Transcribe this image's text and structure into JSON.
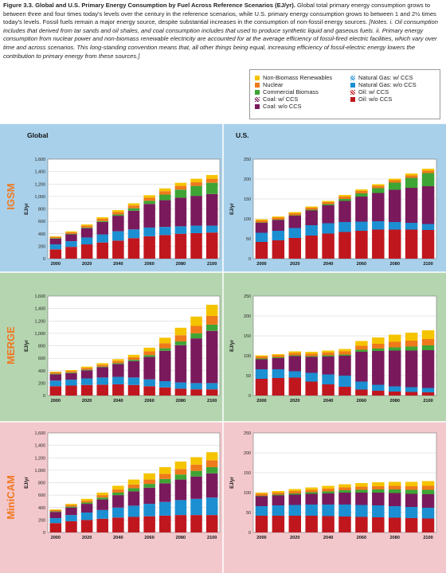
{
  "caption": {
    "title": "Figure 3.3. Global and U.S. Primary Energy Consumption by Fuel Across Reference Scenarios (EJ/yr).",
    "body": " Global total primary energy consumption grows to between three and four times today's levels over the century in the reference scenarios, while U.S. primary energy consumption grows to between 1 and 2½ times today's levels. Fossil fuels remain a major energy source, despite substantial increases in the consumption of non-fossil energy sources. ",
    "notes": "[Notes. i. Oil consumption includes that derived from tar sands and oil shales, and coal consumption includes that used to produce synthetic liquid and gaseous fuels. ii. Primary energy consumption from nuclear power and non-biomass renewable electricity are accounted for at the average efficiency of fossil-fired electric facilities, which vary over time and across scenarios. This long-standing convention means that, all other things being equal, increasing efficiency of fossil-electric energy lowers the contribution to primary energy from these sources.]"
  },
  "legend": [
    {
      "label": "Non-Biomass Renewables",
      "color": "#f5c400",
      "pattern": "solid"
    },
    {
      "label": "Nuclear",
      "color": "#ee7a1b",
      "pattern": "solid"
    },
    {
      "label": "Commercial Biomass",
      "color": "#3ea535",
      "pattern": "solid"
    },
    {
      "label": "Coal: w/ CCS",
      "color": "#7a1a5c",
      "pattern": "hatch"
    },
    {
      "label": "Coal: w/o CCS",
      "color": "#7a1a5c",
      "pattern": "solid"
    },
    {
      "label": "Natural Gas: w/ CCS",
      "color": "#1b8fd2",
      "pattern": "hatch"
    },
    {
      "label": "Natural Gas: w/o CCS",
      "color": "#1b8fd2",
      "pattern": "solid"
    },
    {
      "label": "Oil: w/ CCS",
      "color": "#c0171f",
      "pattern": "hatch"
    },
    {
      "label": "Oil: w/o CCS",
      "color": "#c0171f",
      "pattern": "solid"
    }
  ],
  "columns": [
    "Global",
    "U.S."
  ],
  "rows": [
    {
      "name": "IGSM",
      "bg": "#a8d0ea"
    },
    {
      "name": "MERGE",
      "bg": "#b5d5b0"
    },
    {
      "name": "MiniCAM",
      "bg": "#f3c8cc"
    }
  ],
  "chart_data": [
    {
      "type": "bar",
      "stacked": true,
      "model": "IGSM",
      "region": "Global",
      "ylabel": "EJ/yr",
      "ylim": [
        0,
        1600
      ],
      "yticks": [
        "0",
        "200",
        "400",
        "600",
        "800",
        "1,000",
        "1,200",
        "1,400",
        "1,600"
      ],
      "x": [
        2000,
        2010,
        2020,
        2030,
        2040,
        2050,
        2060,
        2070,
        2080,
        2090,
        2100
      ],
      "xticks": [
        "2000",
        "2020",
        "2040",
        "2060",
        "2080",
        "2100"
      ],
      "series": [
        {
          "name": "Oil: w/o CCS",
          "color": "#c0171f",
          "values": [
            150,
            190,
            230,
            260,
            290,
            330,
            360,
            380,
            400,
            410,
            420
          ]
        },
        {
          "name": "Natural Gas: w/o CCS",
          "color": "#1b8fd2",
          "values": [
            80,
            90,
            110,
            130,
            150,
            140,
            140,
            130,
            120,
            120,
            110
          ]
        },
        {
          "name": "Coal: w/o CCS",
          "color": "#7a1a5c",
          "values": [
            90,
            110,
            150,
            200,
            250,
            300,
            380,
            430,
            460,
            480,
            510
          ]
        },
        {
          "name": "Commercial Biomass",
          "color": "#3ea535",
          "values": [
            10,
            10,
            10,
            15,
            20,
            40,
            50,
            90,
            130,
            160,
            180
          ]
        },
        {
          "name": "Nuclear",
          "color": "#ee7a1b",
          "values": [
            20,
            25,
            30,
            35,
            40,
            45,
            50,
            55,
            60,
            60,
            65
          ]
        },
        {
          "name": "Non-Biomass Renewables",
          "color": "#f5c400",
          "values": [
            10,
            15,
            20,
            25,
            30,
            35,
            40,
            45,
            50,
            55,
            60
          ]
        }
      ]
    },
    {
      "type": "bar",
      "stacked": true,
      "model": "IGSM",
      "region": "U.S.",
      "ylabel": "EJ/yr",
      "ylim": [
        0,
        250
      ],
      "yticks": [
        "0",
        "50",
        "100",
        "150",
        "200",
        "250"
      ],
      "x": [
        2000,
        2010,
        2020,
        2030,
        2040,
        2050,
        2060,
        2070,
        2080,
        2090,
        2100
      ],
      "xticks": [
        "2000",
        "2020",
        "2040",
        "2060",
        "2080",
        "2100"
      ],
      "series": [
        {
          "name": "Oil: w/o CCS",
          "color": "#c0171f",
          "values": [
            42,
            46,
            52,
            58,
            63,
            67,
            70,
            73,
            73,
            73,
            72
          ]
        },
        {
          "name": "Natural Gas: w/o CCS",
          "color": "#1b8fd2",
          "values": [
            23,
            24,
            25,
            26,
            26,
            25,
            23,
            21,
            19,
            17,
            15
          ]
        },
        {
          "name": "Coal: w/o CCS",
          "color": "#7a1a5c",
          "values": [
            25,
            27,
            31,
            37,
            45,
            53,
            63,
            71,
            81,
            88,
            95
          ]
        },
        {
          "name": "Commercial Biomass",
          "color": "#3ea535",
          "values": [
            1,
            1,
            1,
            2,
            3,
            5,
            8,
            12,
            18,
            25,
            33
          ]
        },
        {
          "name": "Nuclear",
          "color": "#ee7a1b",
          "values": [
            5,
            5,
            5,
            5,
            5,
            6,
            6,
            6,
            6,
            6,
            6
          ]
        },
        {
          "name": "Non-Biomass Renewables",
          "color": "#f5c400",
          "values": [
            3,
            3,
            3,
            3,
            3,
            4,
            4,
            4,
            4,
            5,
            5
          ]
        }
      ]
    },
    {
      "type": "bar",
      "stacked": true,
      "model": "MERGE",
      "region": "Global",
      "ylabel": "EJ/yr",
      "ylim": [
        0,
        1600
      ],
      "yticks": [
        "0",
        "200",
        "400",
        "600",
        "800",
        "1,000",
        "1,200",
        "1,400",
        "1,600"
      ],
      "x": [
        2000,
        2010,
        2020,
        2030,
        2040,
        2050,
        2060,
        2070,
        2080,
        2090,
        2100
      ],
      "xticks": [
        "2000",
        "2020",
        "2040",
        "2060",
        "2080",
        "2100"
      ],
      "series": [
        {
          "name": "Oil: w/o CCS",
          "color": "#c0171f",
          "values": [
            150,
            160,
            170,
            175,
            180,
            170,
            150,
            130,
            110,
            100,
            100
          ]
        },
        {
          "name": "Natural Gas: w/o CCS",
          "color": "#1b8fd2",
          "values": [
            90,
            95,
            105,
            115,
            120,
            120,
            110,
            100,
            100,
            100,
            100
          ]
        },
        {
          "name": "Coal: w/o CCS",
          "color": "#7a1a5c",
          "values": [
            100,
            105,
            130,
            165,
            205,
            265,
            360,
            490,
            600,
            720,
            840
          ]
        },
        {
          "name": "Commercial Biomass",
          "color": "#3ea535",
          "values": [
            10,
            10,
            10,
            10,
            15,
            20,
            30,
            40,
            60,
            80,
            100
          ]
        },
        {
          "name": "Nuclear",
          "color": "#ee7a1b",
          "values": [
            25,
            25,
            30,
            30,
            35,
            40,
            60,
            80,
            100,
            120,
            140
          ]
        },
        {
          "name": "Non-Biomass Renewables",
          "color": "#f5c400",
          "values": [
            10,
            15,
            20,
            25,
            30,
            40,
            60,
            90,
            120,
            150,
            180
          ]
        }
      ]
    },
    {
      "type": "bar",
      "stacked": true,
      "model": "MERGE",
      "region": "U.S.",
      "ylabel": "EJ/yr",
      "ylim": [
        0,
        250
      ],
      "yticks": [
        "0",
        "50",
        "100",
        "150",
        "200",
        "250"
      ],
      "x": [
        2000,
        2010,
        2020,
        2030,
        2040,
        2050,
        2060,
        2070,
        2080,
        2090,
        2100
      ],
      "xticks": [
        "2000",
        "2020",
        "2040",
        "2060",
        "2080",
        "2100"
      ],
      "series": [
        {
          "name": "Oil: w/o CCS",
          "color": "#c0171f",
          "values": [
            42,
            44,
            45,
            35,
            28,
            22,
            15,
            12,
            10,
            9,
            8
          ]
        },
        {
          "name": "Natural Gas: w/o CCS",
          "color": "#1b8fd2",
          "values": [
            24,
            22,
            16,
            22,
            25,
            28,
            20,
            15,
            13,
            12,
            11
          ]
        },
        {
          "name": "Coal: w/o CCS",
          "color": "#7a1a5c",
          "values": [
            25,
            28,
            38,
            40,
            45,
            50,
            75,
            85,
            90,
            92,
            95
          ]
        },
        {
          "name": "Commercial Biomass",
          "color": "#3ea535",
          "values": [
            2,
            2,
            2,
            2,
            3,
            3,
            5,
            6,
            8,
            10,
            12
          ]
        },
        {
          "name": "Nuclear",
          "color": "#ee7a1b",
          "values": [
            5,
            5,
            6,
            6,
            7,
            8,
            10,
            12,
            14,
            15,
            16
          ]
        },
        {
          "name": "Non-Biomass Renewables",
          "color": "#f5c400",
          "values": [
            3,
            3,
            4,
            5,
            5,
            6,
            12,
            16,
            18,
            20,
            22
          ]
        }
      ]
    },
    {
      "type": "bar",
      "stacked": true,
      "model": "MiniCAM",
      "region": "Global",
      "ylabel": "EJ/yr",
      "ylim": [
        0,
        1600
      ],
      "yticks": [
        "0",
        "200",
        "400",
        "600",
        "800",
        "1,000",
        "1,200",
        "1,400",
        "1,600"
      ],
      "x": [
        2000,
        2010,
        2020,
        2030,
        2040,
        2050,
        2060,
        2070,
        2080,
        2090,
        2100
      ],
      "xticks": [
        "2000",
        "2020",
        "2040",
        "2060",
        "2080",
        "2100"
      ],
      "series": [
        {
          "name": "Oil: w/o CCS",
          "color": "#c0171f",
          "values": [
            150,
            180,
            200,
            220,
            240,
            250,
            260,
            270,
            280,
            280,
            280
          ]
        },
        {
          "name": "Natural Gas: w/o CCS",
          "color": "#1b8fd2",
          "values": [
            80,
            100,
            120,
            140,
            160,
            180,
            200,
            220,
            240,
            260,
            280
          ]
        },
        {
          "name": "Coal: w/o CCS",
          "color": "#7a1a5c",
          "values": [
            100,
            120,
            140,
            170,
            200,
            230,
            260,
            300,
            330,
            360,
            390
          ]
        },
        {
          "name": "Commercial Biomass",
          "color": "#3ea535",
          "values": [
            10,
            15,
            20,
            30,
            40,
            50,
            60,
            70,
            80,
            90,
            100
          ]
        },
        {
          "name": "Nuclear",
          "color": "#ee7a1b",
          "values": [
            20,
            25,
            30,
            40,
            50,
            60,
            70,
            80,
            90,
            100,
            110
          ]
        },
        {
          "name": "Non-Biomass Renewables",
          "color": "#f5c400",
          "values": [
            10,
            20,
            30,
            40,
            60,
            80,
            100,
            110,
            120,
            120,
            130
          ]
        }
      ]
    },
    {
      "type": "bar",
      "stacked": true,
      "model": "MiniCAM",
      "region": "U.S.",
      "ylabel": "EJ/yr",
      "ylim": [
        0,
        250
      ],
      "yticks": [
        "0",
        "50",
        "100",
        "150",
        "200",
        "250"
      ],
      "x": [
        2000,
        2010,
        2020,
        2030,
        2040,
        2050,
        2060,
        2070,
        2080,
        2090,
        2100
      ],
      "xticks": [
        "2000",
        "2020",
        "2040",
        "2060",
        "2080",
        "2100"
      ],
      "series": [
        {
          "name": "Oil: w/o CCS",
          "color": "#c0171f",
          "values": [
            42,
            42,
            42,
            42,
            41,
            40,
            39,
            38,
            37,
            36,
            35
          ]
        },
        {
          "name": "Natural Gas: w/o CCS",
          "color": "#1b8fd2",
          "values": [
            24,
            26,
            27,
            28,
            29,
            30,
            30,
            30,
            29,
            28,
            27
          ]
        },
        {
          "name": "Coal: w/o CCS",
          "color": "#7a1a5c",
          "values": [
            25,
            25,
            26,
            27,
            28,
            30,
            31,
            32,
            33,
            33,
            34
          ]
        },
        {
          "name": "Commercial Biomass",
          "color": "#3ea535",
          "values": [
            1,
            2,
            3,
            4,
            5,
            6,
            7,
            8,
            9,
            10,
            11
          ]
        },
        {
          "name": "Nuclear",
          "color": "#ee7a1b",
          "values": [
            5,
            5,
            6,
            6,
            7,
            7,
            8,
            8,
            9,
            9,
            10
          ]
        },
        {
          "name": "Non-Biomass Renewables",
          "color": "#f5c400",
          "values": [
            3,
            4,
            5,
            6,
            7,
            8,
            9,
            10,
            10,
            11,
            12
          ]
        }
      ]
    }
  ]
}
